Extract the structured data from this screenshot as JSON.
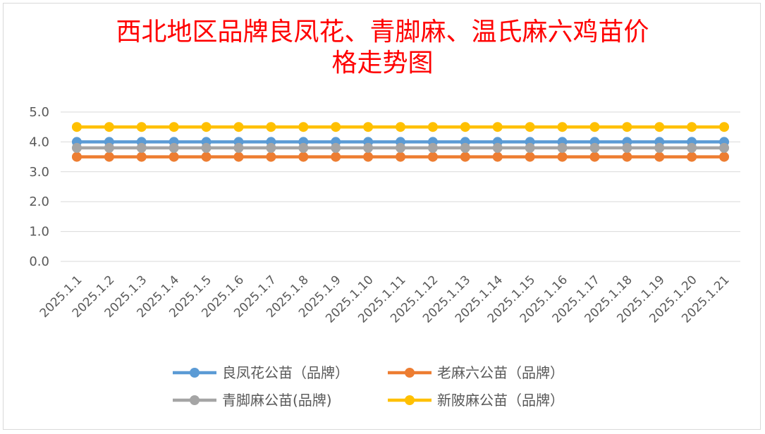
{
  "chart_data": {
    "type": "line",
    "title_line1": "西北地区品牌良凤花、青脚麻、温氏麻六鸡苗价",
    "title_line2": "格走势图",
    "categories": [
      "2025.1.1",
      "2025.1.2",
      "2025.1.3",
      "2025.1.4",
      "2025.1.5",
      "2025.1.6",
      "2025.1.7",
      "2025.1.8",
      "2025.1.9",
      "2025.1.10",
      "2025.1.11",
      "2025.1.12",
      "2025.1.13",
      "2025.1.14",
      "2025.1.15",
      "2025.1.16",
      "2025.1.17",
      "2025.1.18",
      "2025.1.19",
      "2025.1.20",
      "2025.1.21"
    ],
    "y_ticks": [
      "0.0",
      "1.0",
      "2.0",
      "3.0",
      "4.0",
      "5.0"
    ],
    "ylim": [
      0,
      5
    ],
    "grid": true,
    "legend_position": "bottom",
    "series": [
      {
        "name": "良凤花公苗（品牌）",
        "color": "#5b9bd5",
        "values": [
          4.0,
          4.0,
          4.0,
          4.0,
          4.0,
          4.0,
          4.0,
          4.0,
          4.0,
          4.0,
          4.0,
          4.0,
          4.0,
          4.0,
          4.0,
          4.0,
          4.0,
          4.0,
          4.0,
          4.0,
          4.0
        ]
      },
      {
        "name": "老麻六公苗（品牌）",
        "color": "#ed7d31",
        "values": [
          3.5,
          3.5,
          3.5,
          3.5,
          3.5,
          3.5,
          3.5,
          3.5,
          3.5,
          3.5,
          3.5,
          3.5,
          3.5,
          3.5,
          3.5,
          3.5,
          3.5,
          3.5,
          3.5,
          3.5,
          3.5
        ]
      },
      {
        "name": "青脚麻公苗(品牌)",
        "color": "#a5a5a5",
        "values": [
          3.8,
          3.8,
          3.8,
          3.8,
          3.8,
          3.8,
          3.8,
          3.8,
          3.8,
          3.8,
          3.8,
          3.8,
          3.8,
          3.8,
          3.8,
          3.8,
          3.8,
          3.8,
          3.8,
          3.8,
          3.8
        ]
      },
      {
        "name": "新陂麻公苗（品牌）",
        "color": "#ffc000",
        "values": [
          4.5,
          4.5,
          4.5,
          4.5,
          4.5,
          4.5,
          4.5,
          4.5,
          4.5,
          4.5,
          4.5,
          4.5,
          4.5,
          4.5,
          4.5,
          4.5,
          4.5,
          4.5,
          4.5,
          4.5,
          4.5
        ]
      }
    ]
  }
}
